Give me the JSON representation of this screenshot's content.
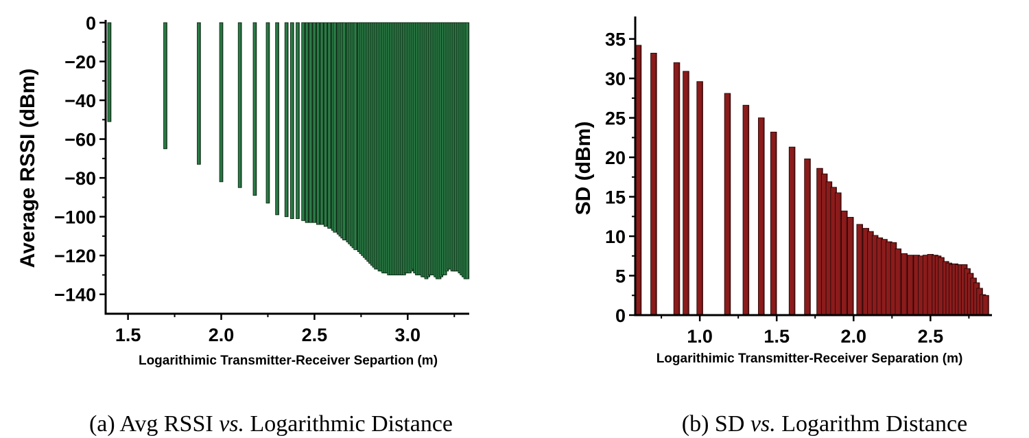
{
  "chart_data": [
    {
      "id": "a",
      "type": "bar",
      "ylabel": "Average RSSI (dBm)",
      "xlabel": "Logarithimic Transmitter-Receiver Separtion (m)",
      "xlim": [
        1.38,
        3.33
      ],
      "ylim": [
        -150,
        0
      ],
      "xticks": [
        "1.5",
        "2.0",
        "2.5",
        "3.0"
      ],
      "xtick_values": [
        1.5,
        2.0,
        2.5,
        3.0
      ],
      "yticks": [
        "0",
        "−20",
        "−40",
        "−60",
        "−80",
        "−100",
        "−120",
        "−140"
      ],
      "ytick_values": [
        0,
        -20,
        -40,
        -60,
        -80,
        -100,
        -120,
        -140
      ],
      "bar_color": "#2a7d46",
      "bar_color_dark": "#1b2e1f",
      "bar_edge": "#0f2a16",
      "x": [
        1.4,
        1.7,
        1.88,
        2.0,
        2.1,
        2.18,
        2.25,
        2.3,
        2.35,
        2.38,
        2.41,
        2.44,
        2.46,
        2.48,
        2.5,
        2.52,
        2.54,
        2.56,
        2.58,
        2.6,
        2.61,
        2.63,
        2.64,
        2.65,
        2.66,
        2.68,
        2.69,
        2.7,
        2.71,
        2.72,
        2.74,
        2.75,
        2.76,
        2.77,
        2.78,
        2.79,
        2.8,
        2.81,
        2.82,
        2.83,
        2.84,
        2.85,
        2.86,
        2.87,
        2.88,
        2.89,
        2.9,
        2.91,
        2.92,
        2.93,
        2.94,
        2.95,
        2.96,
        2.97,
        2.98,
        2.99,
        3.0,
        3.01,
        3.02,
        3.03,
        3.04,
        3.05,
        3.06,
        3.07,
        3.08,
        3.09,
        3.1,
        3.11,
        3.12,
        3.13,
        3.14,
        3.15,
        3.16,
        3.17,
        3.18,
        3.19,
        3.2,
        3.21,
        3.22,
        3.23,
        3.24,
        3.25,
        3.26,
        3.27,
        3.28,
        3.29,
        3.3,
        3.31,
        3.32
      ],
      "values": [
        -51,
        -65,
        -73,
        -82,
        -85,
        -89,
        -93,
        -99,
        -100,
        -101,
        -101,
        -102,
        -103,
        -103,
        -103,
        -104,
        -104,
        -105,
        -106,
        -107,
        -108,
        -109,
        -110,
        -111,
        -112,
        -113,
        -114,
        -115,
        -116,
        -117,
        -118,
        -119,
        -120,
        -121,
        -122,
        -123,
        -124,
        -125,
        -126,
        -127,
        -127,
        -128,
        -128,
        -129,
        -129,
        -129,
        -130,
        -130,
        -130,
        -130,
        -130,
        -130,
        -130,
        -130,
        -130,
        -129,
        -129,
        -129,
        -128,
        -127,
        -129,
        -130,
        -130,
        -130,
        -131,
        -131,
        -132,
        -131,
        -130,
        -130,
        -130,
        -131,
        -132,
        -132,
        -131,
        -130,
        -130,
        -128,
        -127,
        -127,
        -128,
        -128,
        -128,
        -128,
        -129,
        -130,
        -131,
        -132,
        -132
      ]
    },
    {
      "id": "b",
      "type": "bar",
      "ylabel": "SD (dBm)",
      "xlabel": "Logarithimic Transmitter-Receiver Separation (m)",
      "xlim": [
        0.58,
        2.9
      ],
      "ylim": [
        0,
        37.5
      ],
      "xticks": [
        "1.0",
        "1.5",
        "2.0",
        "2.5"
      ],
      "xtick_values": [
        1.0,
        1.5,
        2.0,
        2.5
      ],
      "yticks": [
        "0",
        "5",
        "10",
        "15",
        "20",
        "25",
        "30",
        "35"
      ],
      "ytick_values": [
        0,
        5,
        10,
        15,
        20,
        25,
        30,
        35
      ],
      "bar_color": "#8b1c1c",
      "bar_color_dark": "#4a0c0c",
      "bar_edge": "#2a0606",
      "x": [
        0.6,
        0.7,
        0.85,
        0.91,
        1.0,
        1.18,
        1.3,
        1.4,
        1.48,
        1.6,
        1.7,
        1.78,
        1.81,
        1.84,
        1.87,
        1.9,
        1.94,
        1.98,
        2.04,
        2.08,
        2.11,
        2.14,
        2.17,
        2.2,
        2.23,
        2.26,
        2.29,
        2.33,
        2.37,
        2.41,
        2.44,
        2.47,
        2.5,
        2.53,
        2.55,
        2.57,
        2.6,
        2.62,
        2.64,
        2.66,
        2.68,
        2.7,
        2.72,
        2.74,
        2.76,
        2.78,
        2.8,
        2.82,
        2.84,
        2.86
      ],
      "values": [
        34.2,
        33.2,
        32.0,
        30.9,
        29.6,
        28.1,
        26.6,
        25.0,
        23.2,
        21.3,
        19.8,
        18.6,
        17.9,
        16.9,
        16.2,
        15.5,
        13.2,
        12.4,
        11.5,
        11.0,
        10.6,
        10.1,
        9.8,
        9.6,
        9.3,
        9.2,
        8.4,
        7.8,
        7.6,
        7.6,
        7.5,
        7.6,
        7.7,
        7.6,
        7.5,
        7.3,
        6.8,
        6.6,
        6.4,
        6.5,
        6.4,
        6.4,
        6.4,
        5.9,
        5.3,
        4.7,
        4.1,
        3.4,
        2.6,
        2.5
      ]
    }
  ],
  "captions": {
    "a": {
      "prefix": "(a) Avg RSSI ",
      "em": "vs.",
      "suffix": " Logarithmic Distance"
    },
    "b": {
      "prefix": "(b) SD ",
      "em": "vs.",
      "suffix": " Logarithm Distance"
    }
  }
}
